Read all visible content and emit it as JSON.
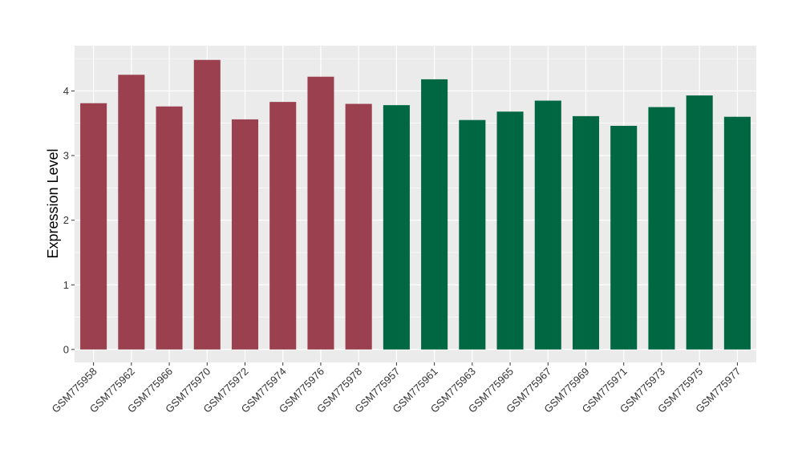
{
  "chart_data": {
    "type": "bar",
    "title": "",
    "xlabel": "",
    "ylabel": "Expression Level",
    "ylim": [
      -0.2,
      4.7
    ],
    "yticks": [
      0,
      1,
      2,
      3,
      4
    ],
    "grid": true,
    "legend": "none",
    "categories": [
      "GSM775958",
      "GSM775962",
      "GSM775966",
      "GSM775970",
      "GSM775972",
      "GSM775974",
      "GSM775976",
      "GSM775978",
      "GSM775957",
      "GSM775961",
      "GSM775963",
      "GSM775965",
      "GSM775967",
      "GSM775969",
      "GSM775971",
      "GSM775973",
      "GSM775975",
      "GSM775977"
    ],
    "values": [
      3.81,
      4.25,
      3.76,
      4.48,
      3.56,
      3.83,
      4.22,
      3.8,
      3.78,
      4.18,
      3.55,
      3.68,
      3.85,
      3.61,
      3.46,
      3.75,
      3.93,
      3.6
    ],
    "groups": [
      0,
      0,
      0,
      0,
      0,
      0,
      0,
      0,
      1,
      1,
      1,
      1,
      1,
      1,
      1,
      1,
      1,
      1
    ],
    "group_colors": [
      "#9A404E",
      "#006743"
    ],
    "panel_background": "#EBEBEB",
    "grid_color": "#FFFFFF"
  }
}
